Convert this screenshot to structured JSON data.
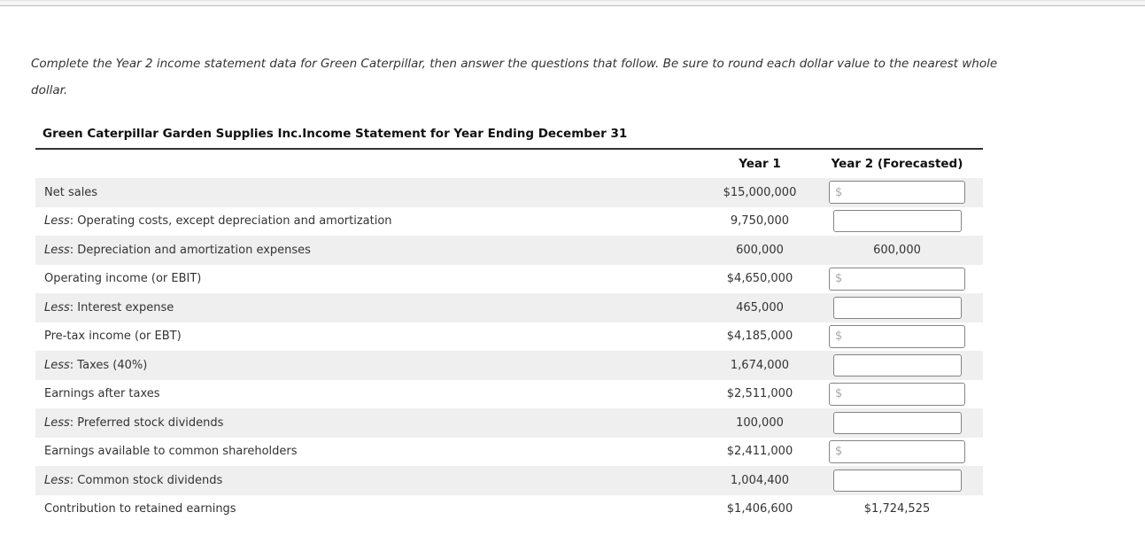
{
  "page": {
    "instructions": "Complete the Year 2 income statement data for Green Caterpillar, then answer the questions that follow. Be sure to round each dollar value to the nearest whole dollar."
  },
  "colors": {
    "row_alt_background": "#efefef",
    "input_border": "#848484",
    "dollar_prefix_gray": "#a9a9a9"
  },
  "table": {
    "title": "Green Caterpillar Garden Supplies Inc.Income Statement for Year Ending December 31",
    "dollar_prefix": "$",
    "columns": {
      "year1": "Year 1",
      "year2": "Year 2 (Forecasted)"
    },
    "rows": [
      {
        "less": "",
        "label": "Net sales",
        "year1": "$15,000,000",
        "year2": ""
      },
      {
        "less": "Less",
        "label": ": Operating costs, except depreciation and amortization",
        "year1": "9,750,000",
        "year2": ""
      },
      {
        "less": "Less",
        "label": ": Depreciation and amortization expenses",
        "year1": "600,000",
        "year2": "600,000"
      },
      {
        "less": "",
        "label": "Operating income (or EBIT)",
        "year1": "$4,650,000",
        "year2": ""
      },
      {
        "less": "Less",
        "label": ": Interest expense",
        "year1": "465,000",
        "year2": ""
      },
      {
        "less": "",
        "label": "Pre-tax income (or EBT)",
        "year1": "$4,185,000",
        "year2": ""
      },
      {
        "less": "Less",
        "label": ": Taxes (40%)",
        "year1": "1,674,000",
        "year2": ""
      },
      {
        "less": "",
        "label": "Earnings after taxes",
        "year1": "$2,511,000",
        "year2": ""
      },
      {
        "less": "Less",
        "label": ": Preferred stock dividends",
        "year1": "100,000",
        "year2": ""
      },
      {
        "less": "",
        "label": "Earnings available to common shareholders",
        "year1": "$2,411,000",
        "year2": ""
      },
      {
        "less": "Less",
        "label": ": Common stock dividends",
        "year1": "1,004,400",
        "year2": ""
      },
      {
        "less": "",
        "label": "Contribution to retained earnings",
        "year1": "$1,406,600",
        "year2": "$1,724,525"
      }
    ]
  }
}
